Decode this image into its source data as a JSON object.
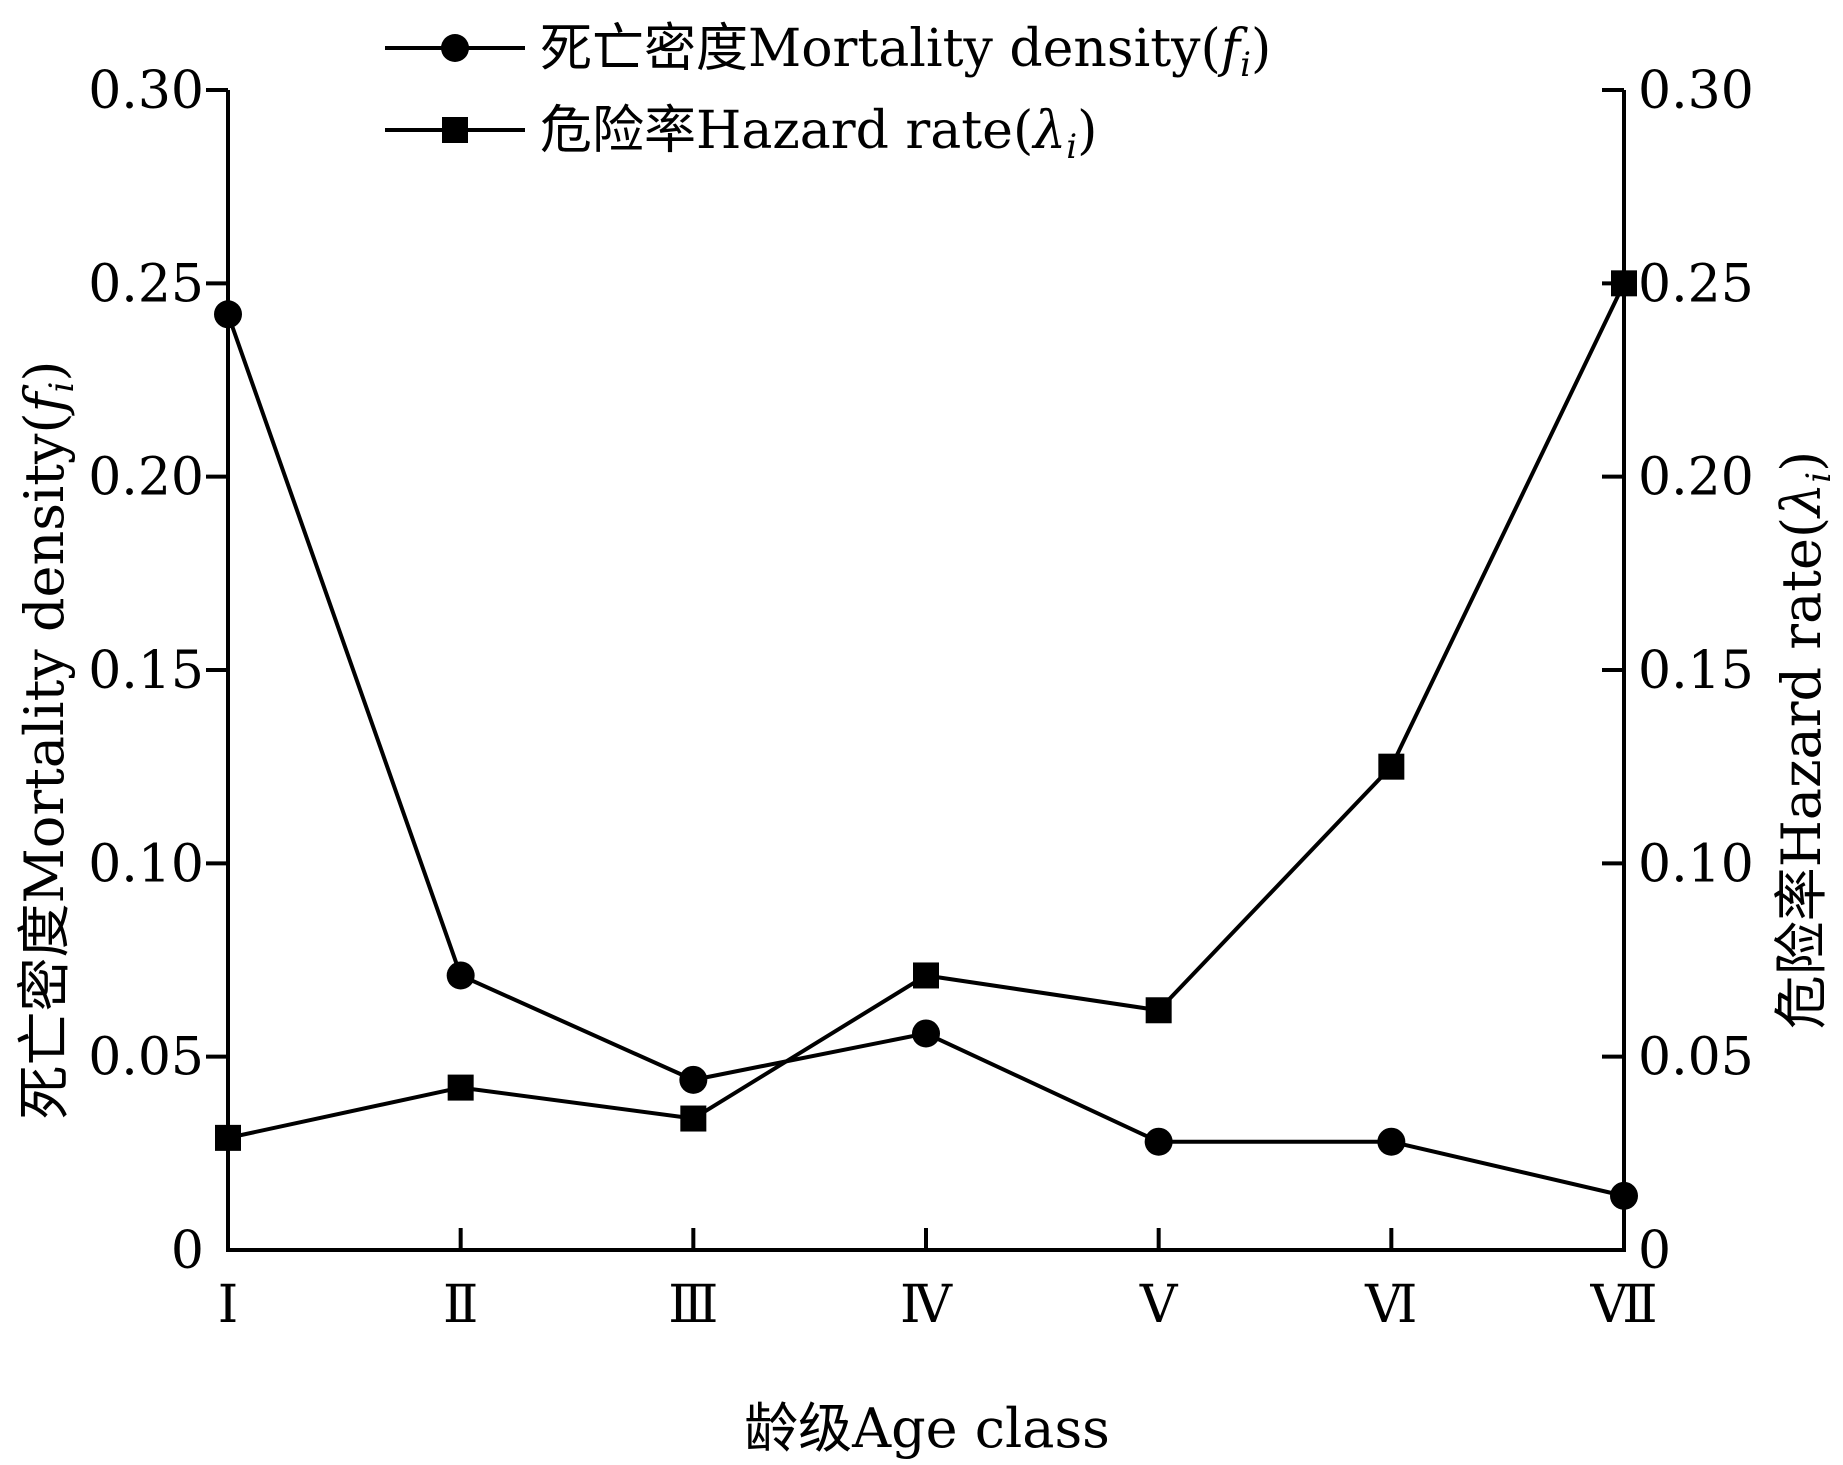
{
  "chart_data": {
    "type": "line",
    "categories": [
      "Ⅰ",
      "Ⅱ",
      "Ⅲ",
      "Ⅳ",
      "Ⅴ",
      "Ⅵ",
      "Ⅶ"
    ],
    "xlabel": "龄级Age class",
    "y_left": {
      "label": {
        "prefix": "死亡密度Mortality density(",
        "symbol": "f",
        "subscript": "i",
        "suffix": ")"
      },
      "ylim": [
        0,
        0.3
      ],
      "ticks": [
        "0",
        "0.05",
        "0.10",
        "0.15",
        "0.20",
        "0.25",
        "0.30"
      ]
    },
    "y_right": {
      "label": {
        "prefix": "危险率Hazard rate(",
        "symbol": "λ",
        "subscript": "i",
        "suffix": ")"
      },
      "ylim": [
        0,
        0.3
      ],
      "ticks": [
        "0",
        "0.05",
        "0.10",
        "0.15",
        "0.20",
        "0.25",
        "0.30"
      ]
    },
    "series": [
      {
        "key": "mortality",
        "name": {
          "prefix": "死亡密度Mortality density(",
          "symbol": "f",
          "subscript": "i",
          "suffix": ")"
        },
        "axis": "left",
        "marker": "circle",
        "values": [
          0.242,
          0.071,
          0.044,
          0.056,
          0.028,
          0.028,
          0.014
        ]
      },
      {
        "key": "hazard",
        "name": {
          "prefix": "危险率Hazard rate(",
          "symbol": "λ",
          "subscript": "i",
          "suffix": ")"
        },
        "axis": "right",
        "marker": "square",
        "values": [
          0.029,
          0.042,
          0.034,
          0.071,
          0.062,
          0.125,
          0.25
        ]
      }
    ],
    "grid": false,
    "legend_position": "top"
  },
  "colors": {
    "line": "#000000",
    "background": "#ffffff"
  }
}
